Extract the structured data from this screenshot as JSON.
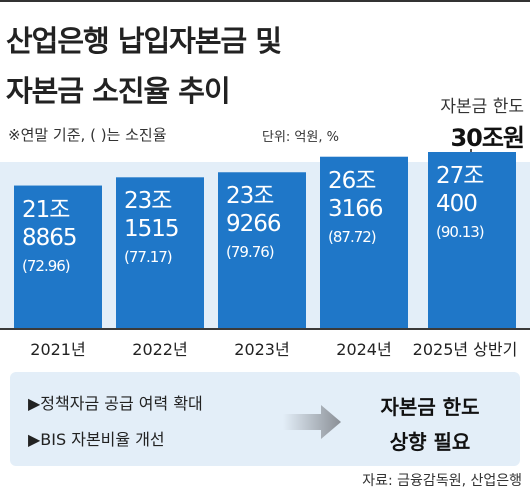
{
  "header": {
    "title_line1": "산업은행 납입자본금 및",
    "title_line2": "자본금 소진율 추이",
    "note": "※연말 기준, ( )는 소진율",
    "unit": "단위: 억원, %"
  },
  "limit": {
    "label": "자본금 한도",
    "value": "30조원"
  },
  "chart_data": {
    "type": "bar",
    "categories": [
      "2021년",
      "2022년",
      "2023년",
      "2024년",
      "2025년 상반기"
    ],
    "values": [
      218865,
      231515,
      239266,
      263166,
      270400
    ],
    "value_labels": [
      {
        "line1": "21조",
        "line2": "8865",
        "pct": "(72.96)"
      },
      {
        "line1": "23조",
        "line2": "1515",
        "pct": "(77.17)"
      },
      {
        "line1": "23조",
        "line2": "9266",
        "pct": "(79.76)"
      },
      {
        "line1": "26조",
        "line2": "3166",
        "pct": "(87.72)"
      },
      {
        "line1": "27조",
        "line2": "400",
        "pct": "(90.13)"
      }
    ],
    "exhaustion_rate": [
      72.96,
      77.17,
      79.76,
      87.72,
      90.13
    ],
    "limit_value": 300000,
    "ylim": [
      0,
      300000
    ],
    "bar_color": "#1f77c8",
    "background_color": "#e3eef8"
  },
  "callout": {
    "points": [
      "▶정책자금 공급 여력 확대",
      "▶BIS 자본비율 개선"
    ],
    "result_line1": "자본금 한도",
    "result_line2": "상향 필요"
  },
  "source": "자료: 금융감독원, 산업은행"
}
